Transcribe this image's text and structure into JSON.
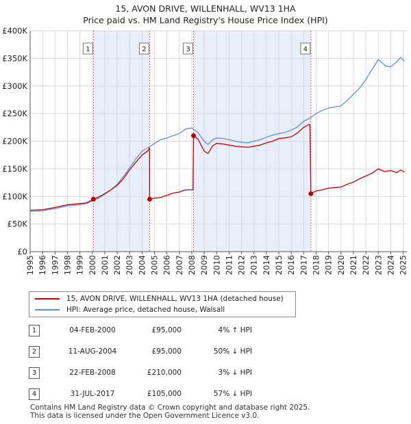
{
  "title": {
    "line1": "15, AVON DRIVE, WILLENHALL, WV13 1HA",
    "line2": "Price paid vs. HM Land Registry's House Price Index (HPI)"
  },
  "colors": {
    "property": "#c00000",
    "hpi": "#5b8fd4",
    "shade": "#e8eefa",
    "marker_line": "#e06060",
    "grid": "#d8d8d8"
  },
  "legend": {
    "property_label": "15, AVON DRIVE, WILLENHALL, WV13 1HA (detached house)",
    "hpi_label": "HPI: Average price, detached house, Walsall"
  },
  "sales": [
    {
      "num": "1",
      "date": "04-FEB-2000",
      "price": "£95,000",
      "hpi": "4% ↑ HPI",
      "t": 2000.09,
      "value": 95000
    },
    {
      "num": "2",
      "date": "11-AUG-2004",
      "price": "£95,000",
      "hpi": "50% ↓ HPI",
      "t": 2004.61,
      "value": 95000
    },
    {
      "num": "3",
      "date": "22-FEB-2008",
      "price": "£210,000",
      "hpi": "3% ↓ HPI",
      "t": 2008.14,
      "value": 210000
    },
    {
      "num": "4",
      "date": "31-JUL-2017",
      "price": "£105,000",
      "hpi": "57% ↓ HPI",
      "t": 2017.58,
      "value": 105000
    }
  ],
  "footer": {
    "line1": "Contains HM Land Registry data © Crown copyright and database right 2025.",
    "line2": "This data is licensed under the Open Government Licence v3.0."
  },
  "chart_data": {
    "type": "line",
    "title": "15, AVON DRIVE, WILLENHALL, WV13 1HA — Price paid vs. HM Land Registry's House Price Index (HPI)",
    "xlim": [
      1995,
      2025.3
    ],
    "ylim": [
      0,
      400000
    ],
    "x_ticks": [
      1995,
      1996,
      1997,
      1998,
      1999,
      2000,
      2001,
      2002,
      2003,
      2004,
      2005,
      2006,
      2007,
      2008,
      2009,
      2010,
      2011,
      2012,
      2013,
      2014,
      2015,
      2016,
      2017,
      2018,
      2019,
      2020,
      2021,
      2022,
      2023,
      2024,
      2025
    ],
    "y_ticks": [
      0,
      50000,
      100000,
      150000,
      200000,
      250000,
      300000,
      350000,
      400000
    ],
    "y_tick_labels": [
      "£0",
      "£50K",
      "£100K",
      "£150K",
      "£200K",
      "£250K",
      "£300K",
      "£350K",
      "£400K"
    ],
    "shaded_periods": [
      [
        2000.09,
        2004.61
      ],
      [
        2008.14,
        2017.58
      ]
    ],
    "series": [
      {
        "name": "15, AVON DRIVE, WILLENHALL, WV13 1HA (detached house)",
        "color": "#c00000",
        "points": [
          [
            1995,
            75000
          ],
          [
            1996,
            76000
          ],
          [
            1997,
            80000
          ],
          [
            1998,
            85000
          ],
          [
            1999,
            87000
          ],
          [
            1999.5,
            88000
          ],
          [
            2000.09,
            95000
          ],
          [
            2000.5,
            99000
          ],
          [
            2001,
            105000
          ],
          [
            2001.5,
            112000
          ],
          [
            2002,
            120000
          ],
          [
            2002.5,
            132000
          ],
          [
            2003,
            148000
          ],
          [
            2003.5,
            162000
          ],
          [
            2004,
            175000
          ],
          [
            2004.5,
            183000
          ],
          [
            2004.6,
            188000
          ],
          [
            2004.61,
            95000
          ],
          [
            2005,
            97000
          ],
          [
            2005.5,
            98000
          ],
          [
            2006,
            102000
          ],
          [
            2006.5,
            106000
          ],
          [
            2007,
            108000
          ],
          [
            2007.5,
            112000
          ],
          [
            2008.1,
            112000
          ],
          [
            2008.14,
            210000
          ],
          [
            2008.5,
            204000
          ],
          [
            2009,
            182000
          ],
          [
            2009.3,
            178000
          ],
          [
            2009.7,
            192000
          ],
          [
            2010,
            196000
          ],
          [
            2010.5,
            195000
          ],
          [
            2011,
            193000
          ],
          [
            2011.5,
            191000
          ],
          [
            2012,
            190000
          ],
          [
            2012.5,
            189000
          ],
          [
            2013,
            191000
          ],
          [
            2013.5,
            193000
          ],
          [
            2014,
            197000
          ],
          [
            2014.5,
            200000
          ],
          [
            2015,
            205000
          ],
          [
            2015.5,
            206000
          ],
          [
            2016,
            208000
          ],
          [
            2016.5,
            215000
          ],
          [
            2017,
            225000
          ],
          [
            2017.4,
            230000
          ],
          [
            2017.5,
            230000
          ],
          [
            2017.58,
            105000
          ],
          [
            2018,
            110000
          ],
          [
            2018.5,
            112000
          ],
          [
            2019,
            115000
          ],
          [
            2019.5,
            116000
          ],
          [
            2020,
            117000
          ],
          [
            2020.5,
            122000
          ],
          [
            2021,
            126000
          ],
          [
            2021.5,
            132000
          ],
          [
            2022,
            137000
          ],
          [
            2022.5,
            142000
          ],
          [
            2023,
            150000
          ],
          [
            2023.5,
            145000
          ],
          [
            2024,
            147000
          ],
          [
            2024.5,
            143000
          ],
          [
            2024.8,
            148000
          ],
          [
            2025.1,
            144000
          ]
        ]
      },
      {
        "name": "HPI: Average price, detached house, Walsall",
        "color": "#5b8fd4",
        "points": [
          [
            1995,
            73000
          ],
          [
            1996,
            74000
          ],
          [
            1997,
            78000
          ],
          [
            1998,
            83000
          ],
          [
            1999,
            85000
          ],
          [
            1999.5,
            87000
          ],
          [
            2000,
            92000
          ],
          [
            2000.5,
            97000
          ],
          [
            2001,
            104000
          ],
          [
            2001.5,
            112000
          ],
          [
            2002,
            122000
          ],
          [
            2002.5,
            136000
          ],
          [
            2003,
            152000
          ],
          [
            2003.5,
            168000
          ],
          [
            2004,
            182000
          ],
          [
            2004.6,
            190000
          ],
          [
            2005,
            196000
          ],
          [
            2005.5,
            203000
          ],
          [
            2006,
            206000
          ],
          [
            2006.5,
            210000
          ],
          [
            2007,
            214000
          ],
          [
            2007.5,
            222000
          ],
          [
            2008,
            224000
          ],
          [
            2008.5,
            216000
          ],
          [
            2009,
            200000
          ],
          [
            2009.3,
            194000
          ],
          [
            2009.7,
            203000
          ],
          [
            2010,
            206000
          ],
          [
            2010.5,
            205000
          ],
          [
            2011,
            203000
          ],
          [
            2011.5,
            200000
          ],
          [
            2012,
            198000
          ],
          [
            2012.5,
            197000
          ],
          [
            2013,
            200000
          ],
          [
            2013.5,
            203000
          ],
          [
            2014,
            207000
          ],
          [
            2014.5,
            211000
          ],
          [
            2015,
            214000
          ],
          [
            2015.5,
            216000
          ],
          [
            2016,
            220000
          ],
          [
            2016.5,
            226000
          ],
          [
            2017,
            236000
          ],
          [
            2017.5,
            242000
          ],
          [
            2018,
            250000
          ],
          [
            2018.5,
            256000
          ],
          [
            2019,
            260000
          ],
          [
            2019.5,
            262000
          ],
          [
            2020,
            264000
          ],
          [
            2020.5,
            274000
          ],
          [
            2021,
            285000
          ],
          [
            2021.5,
            296000
          ],
          [
            2022,
            312000
          ],
          [
            2022.5,
            330000
          ],
          [
            2023,
            348000
          ],
          [
            2023.3,
            342000
          ],
          [
            2023.6,
            336000
          ],
          [
            2024,
            335000
          ],
          [
            2024.5,
            344000
          ],
          [
            2024.8,
            352000
          ],
          [
            2025.1,
            345000
          ]
        ]
      }
    ],
    "xlabel": "",
    "ylabel": "",
    "legend_position": "below"
  }
}
